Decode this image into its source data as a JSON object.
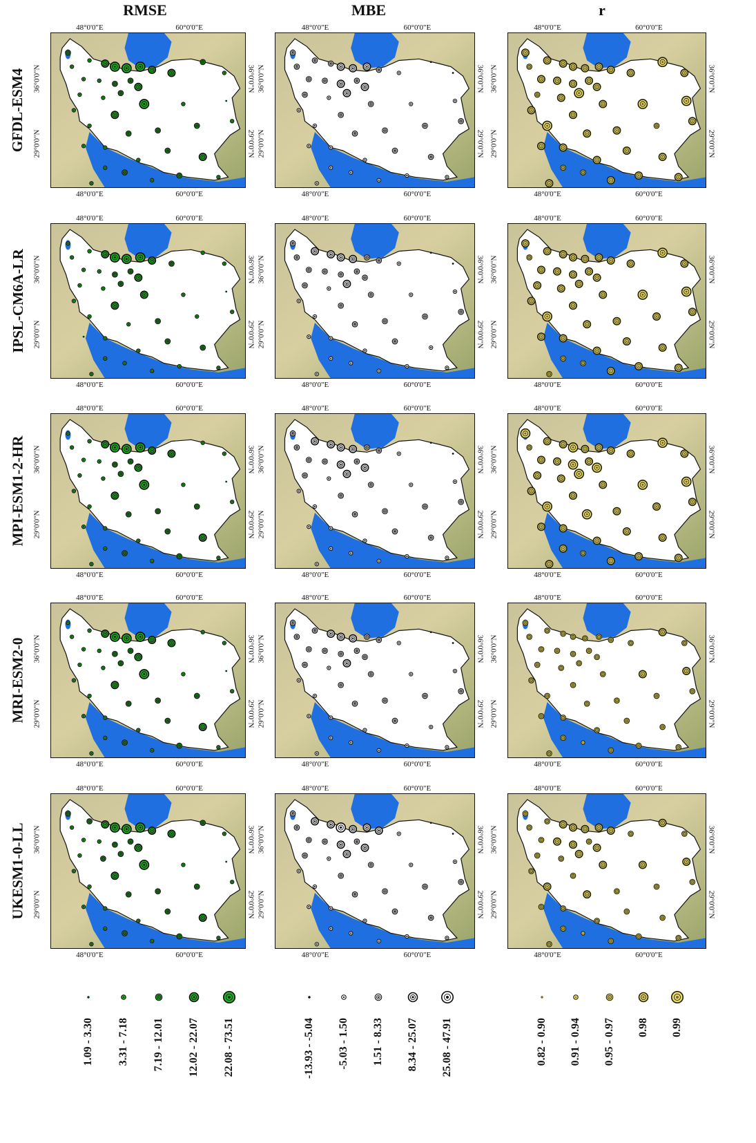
{
  "columns": [
    {
      "id": "rmse",
      "title": "RMSE",
      "style": {
        "ring": "#0d0d0d",
        "fill": "#22b022",
        "core": "#0a3a0a"
      }
    },
    {
      "id": "mbe",
      "title": "MBE",
      "style": {
        "ring": "#0d0d0d",
        "fill": "#ffffff",
        "core": "#111111"
      }
    },
    {
      "id": "r",
      "title": "r",
      "style": {
        "ring": "#222200",
        "fill": "#ecdc70",
        "core": "#7a6e2c"
      }
    }
  ],
  "models": [
    "GFDL-ESM4",
    "IPSL-CM6A-LR",
    "MPI-ESM1-2-HR",
    "MRI-ESM2-0",
    "UKESM1-0-LL"
  ],
  "axis_labels": {
    "lon_left": "48°0'0\"E",
    "lon_right": "60°0'0\"E",
    "lat_top": "36°0'0\"N",
    "lat_bottom": "29°0'0\"N"
  },
  "colors": {
    "sea": "#1f6fe0",
    "land_base": "#d8cfa0",
    "land_green": "#9aa56a",
    "iran": "#ffffff",
    "border": "#111111"
  },
  "stations": [
    [
      0.09,
      0.13
    ],
    [
      0.11,
      0.22
    ],
    [
      0.2,
      0.18
    ],
    [
      0.28,
      0.2
    ],
    [
      0.33,
      0.22
    ],
    [
      0.39,
      0.23
    ],
    [
      0.46,
      0.22
    ],
    [
      0.52,
      0.24
    ],
    [
      0.62,
      0.26
    ],
    [
      0.78,
      0.19
    ],
    [
      0.89,
      0.26
    ],
    [
      0.17,
      0.3
    ],
    [
      0.25,
      0.31
    ],
    [
      0.33,
      0.33
    ],
    [
      0.41,
      0.31
    ],
    [
      0.36,
      0.39
    ],
    [
      0.45,
      0.35
    ],
    [
      0.15,
      0.4
    ],
    [
      0.27,
      0.42
    ],
    [
      0.12,
      0.5
    ],
    [
      0.2,
      0.6
    ],
    [
      0.33,
      0.53
    ],
    [
      0.48,
      0.46
    ],
    [
      0.68,
      0.46
    ],
    [
      0.9,
      0.44
    ],
    [
      0.17,
      0.73
    ],
    [
      0.28,
      0.74
    ],
    [
      0.4,
      0.65
    ],
    [
      0.55,
      0.63
    ],
    [
      0.75,
      0.6
    ],
    [
      0.93,
      0.57
    ],
    [
      0.28,
      0.87
    ],
    [
      0.45,
      0.82
    ],
    [
      0.6,
      0.76
    ],
    [
      0.78,
      0.8
    ],
    [
      0.52,
      0.95
    ],
    [
      0.66,
      0.92
    ],
    [
      0.86,
      0.93
    ],
    [
      0.21,
      0.97
    ],
    [
      0.38,
      0.9
    ]
  ],
  "panel_data": [
    [
      [
        3,
        2,
        2,
        4,
        5,
        5,
        5,
        4,
        4,
        3,
        2,
        2,
        2,
        3,
        3,
        3,
        4,
        2,
        2,
        2,
        2,
        4,
        5,
        2,
        1,
        2,
        2,
        3,
        3,
        3,
        2,
        2,
        2,
        3,
        4,
        2,
        3,
        2,
        2,
        3
      ],
      [
        3,
        3,
        3,
        3,
        4,
        4,
        4,
        3,
        2,
        1,
        1,
        3,
        3,
        4,
        3,
        4,
        4,
        3,
        2,
        2,
        2,
        3,
        3,
        2,
        2,
        2,
        2,
        3,
        3,
        3,
        3,
        2,
        2,
        3,
        3,
        2,
        2,
        2,
        2,
        2
      ],
      [
        4,
        3,
        4,
        4,
        4,
        4,
        4,
        4,
        4,
        5,
        4,
        4,
        4,
        4,
        4,
        5,
        4,
        3,
        4,
        4,
        5,
        4,
        4,
        5,
        5,
        4,
        4,
        4,
        4,
        3,
        4,
        3,
        4,
        4,
        4,
        4,
        4,
        4,
        4,
        3
      ]
    ],
    [
      [
        2,
        2,
        2,
        4,
        5,
        5,
        5,
        4,
        3,
        2,
        2,
        2,
        2,
        3,
        3,
        3,
        4,
        2,
        2,
        2,
        2,
        4,
        4,
        2,
        1,
        1,
        2,
        2,
        3,
        2,
        2,
        2,
        2,
        3,
        3,
        2,
        2,
        2,
        2,
        2
      ],
      [
        3,
        3,
        4,
        4,
        4,
        4,
        3,
        3,
        2,
        1,
        1,
        3,
        3,
        3,
        3,
        4,
        3,
        3,
        2,
        2,
        2,
        3,
        3,
        2,
        2,
        2,
        2,
        3,
        3,
        3,
        3,
        2,
        2,
        3,
        2,
        2,
        2,
        2,
        2,
        2
      ],
      [
        4,
        3,
        4,
        4,
        4,
        4,
        4,
        4,
        4,
        5,
        4,
        4,
        4,
        4,
        4,
        4,
        4,
        4,
        4,
        4,
        5,
        4,
        4,
        5,
        5,
        4,
        4,
        4,
        4,
        4,
        4,
        3,
        4,
        4,
        4,
        4,
        4,
        4,
        3,
        3
      ]
    ],
    [
      [
        2,
        2,
        2,
        4,
        5,
        5,
        5,
        4,
        4,
        2,
        2,
        2,
        2,
        3,
        3,
        3,
        4,
        2,
        2,
        2,
        2,
        4,
        5,
        2,
        1,
        2,
        2,
        3,
        3,
        3,
        2,
        2,
        2,
        3,
        4,
        2,
        3,
        2,
        2,
        3
      ],
      [
        3,
        3,
        4,
        4,
        4,
        4,
        3,
        3,
        2,
        1,
        1,
        3,
        3,
        4,
        3,
        4,
        4,
        3,
        2,
        2,
        2,
        3,
        3,
        2,
        2,
        2,
        2,
        3,
        3,
        3,
        3,
        2,
        2,
        3,
        3,
        2,
        2,
        2,
        2,
        2
      ],
      [
        5,
        3,
        4,
        4,
        5,
        4,
        4,
        4,
        4,
        5,
        4,
        4,
        4,
        5,
        4,
        5,
        5,
        4,
        4,
        4,
        5,
        4,
        4,
        5,
        5,
        4,
        4,
        5,
        4,
        4,
        4,
        4,
        4,
        4,
        4,
        4,
        4,
        4,
        4,
        3
      ]
    ],
    [
      [
        2,
        2,
        2,
        4,
        5,
        5,
        5,
        4,
        4,
        2,
        2,
        2,
        2,
        3,
        3,
        3,
        4,
        2,
        2,
        2,
        2,
        4,
        5,
        2,
        1,
        2,
        2,
        3,
        3,
        3,
        2,
        2,
        2,
        3,
        4,
        2,
        3,
        2,
        2,
        3
      ],
      [
        3,
        3,
        3,
        4,
        4,
        4,
        3,
        3,
        2,
        1,
        1,
        3,
        3,
        3,
        3,
        4,
        3,
        3,
        2,
        2,
        2,
        3,
        3,
        2,
        2,
        2,
        2,
        3,
        3,
        3,
        3,
        2,
        2,
        3,
        2,
        2,
        2,
        2,
        2,
        2
      ],
      [
        3,
        3,
        3,
        3,
        3,
        3,
        3,
        3,
        3,
        4,
        3,
        3,
        3,
        3,
        3,
        3,
        3,
        3,
        3,
        3,
        3,
        3,
        3,
        4,
        4,
        3,
        3,
        3,
        3,
        3,
        3,
        3,
        3,
        3,
        3,
        3,
        3,
        3,
        3,
        2
      ]
    ],
    [
      [
        3,
        2,
        3,
        4,
        5,
        5,
        5,
        4,
        4,
        3,
        2,
        2,
        2,
        3,
        3,
        3,
        4,
        2,
        3,
        2,
        2,
        4,
        5,
        2,
        1,
        2,
        2,
        3,
        3,
        3,
        2,
        2,
        2,
        3,
        4,
        2,
        3,
        2,
        2,
        3
      ],
      [
        3,
        3,
        4,
        4,
        5,
        4,
        4,
        4,
        2,
        1,
        1,
        3,
        3,
        4,
        3,
        4,
        4,
        3,
        2,
        2,
        2,
        3,
        3,
        2,
        2,
        2,
        2,
        3,
        3,
        3,
        3,
        2,
        2,
        3,
        3,
        2,
        2,
        2,
        2,
        2
      ],
      [
        3,
        3,
        3,
        4,
        4,
        4,
        4,
        4,
        3,
        4,
        3,
        3,
        4,
        4,
        3,
        4,
        4,
        3,
        3,
        3,
        4,
        3,
        4,
        4,
        4,
        3,
        3,
        4,
        3,
        3,
        3,
        3,
        3,
        3,
        3,
        3,
        3,
        3,
        3,
        2
      ]
    ]
  ],
  "legends": [
    {
      "name": "rmse",
      "items": [
        "1.09 - 3.30",
        "3.31 - 7.18",
        "7.19 - 12.01",
        "12.02 - 22.07",
        "22.08 - 73.51"
      ]
    },
    {
      "name": "mbe",
      "items": [
        "-13.93 - -5.04",
        "-5.03 - 1.50",
        "1.51 - 8.33",
        "8.34 - 25.07",
        "25.08 - 47.91"
      ]
    },
    {
      "name": "r",
      "items": [
        "0.82 - 0.90",
        "0.91 - 0.94",
        "0.95 - 0.97",
        "0.98",
        "0.99"
      ]
    }
  ]
}
